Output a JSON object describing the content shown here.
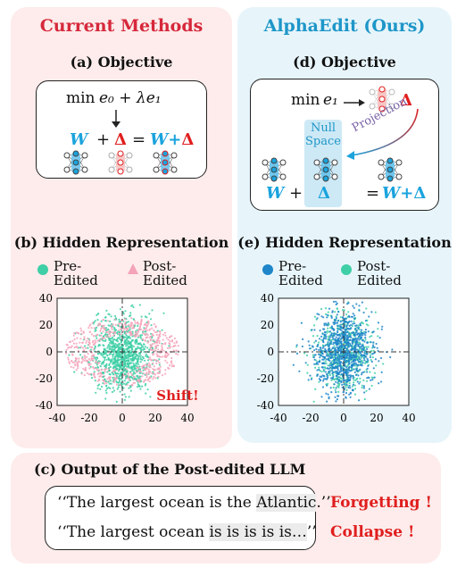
{
  "left": {
    "title": "Current Methods",
    "objective_title": "(a) Objective",
    "eq_min": "min",
    "eq_terms": "e₀ + λe₁",
    "eq_W": "W",
    "eq_plus": "+",
    "eq_delta": "Δ",
    "eq_equals": "=",
    "eq_result_W": "W",
    "eq_result_plus": "+",
    "eq_result_delta": "Δ",
    "hidden_title": "(b) Hidden Representation",
    "legend_pre": "Pre-\nEdited",
    "legend_post": "Post-\nEdited",
    "shift_label": "Shift!",
    "ticks": [
      "-40",
      "-20",
      "0",
      "20",
      "40"
    ]
  },
  "right": {
    "title": "AlphaEdit (Ours)",
    "objective_title": "(d) Objective",
    "eq_min": "min",
    "eq_terms": "e₁",
    "eq_delta": "Δ",
    "projection_label": "Projection",
    "null_space_label": "Null\nSpace",
    "eq_W": "W",
    "eq_plus": "+",
    "eq_delta_bottom": "Δ",
    "eq_equals": "=",
    "eq_result_W": "W",
    "eq_result_plus": "+",
    "eq_result_delta": "Δ",
    "hidden_title": "(e) Hidden Representation",
    "legend_pre": "Pre-\nEdited",
    "legend_post": "Post-\nEdited",
    "ticks": [
      "-40",
      "-20",
      "0",
      "20",
      "40"
    ]
  },
  "bottom": {
    "title": "(c) Output of the Post-edited LLM",
    "line1_prefix": "‘‘The largest ocean is the ",
    "line1_highlight": "Atlantic",
    "line1_suffix": ".’’",
    "line1_tag": "Forgetting !",
    "line2_prefix": "‘‘The largest ocean ",
    "line2_highlight": "is is is is is…",
    "line2_suffix": "’’",
    "line2_tag": "Collapse !"
  },
  "colors": {
    "pre_green": "#3ecfa6",
    "post_pink": "#f4a3b8",
    "pre_blue": "#1e86c9",
    "post_green": "#3ecfa6",
    "accent_blue": "#1aa3dd",
    "accent_red": "#e01e1e",
    "title_red": "#d6283b",
    "title_blue": "#1e96c8"
  }
}
